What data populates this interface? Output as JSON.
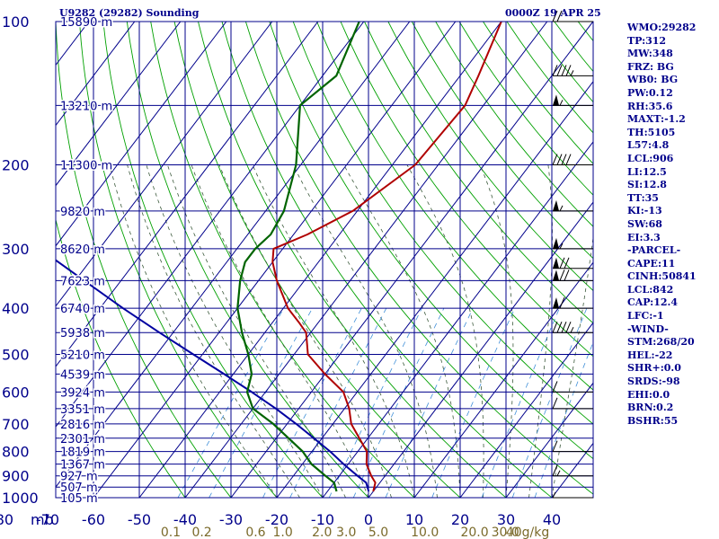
{
  "header": {
    "station": "U9282 (29282) Sounding",
    "time": "0000Z 19 APR 25"
  },
  "side_panel": [
    "WMO:29282",
    "TP:312",
    "MW:348",
    "FRZ: BG",
    "WB0: BG",
    "PW:0.12",
    "RH:35.6",
    "MAXT:-1.2",
    "TH:5105",
    "L57:4.8",
    "LCL:906",
    "LI:12.5",
    "SI:12.8",
    "TT:35",
    "KI:-13",
    "SW:68",
    "EI:3.3",
    "-PARCEL-",
    "CAPE:11",
    "CINH:50841",
    "LCL:842",
    "CAP:12.4",
    "LFC:-1",
    "-WIND-",
    "STM:268/20",
    "HEL:-22",
    "SHR+:0.0",
    "SRDS:-98",
    "EHI:0.0",
    "BRN:0.2",
    "BSHR:55"
  ],
  "colors": {
    "grid": "#00008b",
    "temperature": "#b00000",
    "dewpoint": "#006400",
    "parcel": "#0000a0",
    "dry_adiabat": "#00a000",
    "moist_adiabat": "#3c5a3c",
    "mixing_ratio": "#3f8fd8",
    "mixing_ratio_label": "#7a6a2a"
  },
  "chart_data": {
    "type": "skew-t",
    "x_label": "",
    "y_label": "mb",
    "y_scale": "log",
    "temperature_axis": [
      -80,
      -70,
      -60,
      -50,
      -40,
      -30,
      -20,
      -10,
      0,
      10,
      20,
      30,
      40
    ],
    "temperature_tick_labels": [
      "-80",
      "-70",
      "-60",
      "-50",
      "-40",
      "-30",
      "-20",
      "-10",
      "0",
      "10",
      "20",
      "30",
      "40"
    ],
    "pressure_axis": [
      100,
      200,
      300,
      400,
      500,
      600,
      700,
      800,
      900,
      1000
    ],
    "height_labels": [
      {
        "p": 100,
        "label": "15890 m"
      },
      {
        "p": 150,
        "label": "13210 m"
      },
      {
        "p": 200,
        "label": "11300 m"
      },
      {
        "p": 250,
        "label": "9820 m"
      },
      {
        "p": 300,
        "label": "8620 m"
      },
      {
        "p": 350,
        "label": "7623 m"
      },
      {
        "p": 400,
        "label": "6740 m"
      },
      {
        "p": 450,
        "label": "5938 m"
      },
      {
        "p": 500,
        "label": "5210 m"
      },
      {
        "p": 550,
        "label": "4539 m"
      },
      {
        "p": 600,
        "label": "3924 m"
      },
      {
        "p": 650,
        "label": "3351 m"
      },
      {
        "p": 700,
        "label": "2816 m"
      },
      {
        "p": 750,
        "label": "2301 m"
      },
      {
        "p": 800,
        "label": "1819 m"
      },
      {
        "p": 850,
        "label": "1367 m"
      },
      {
        "p": 900,
        "label": "927 m"
      },
      {
        "p": 950,
        "label": "507 m"
      },
      {
        "p": 1000,
        "label": "105 m"
      }
    ],
    "mixing_ratio_labels": [
      "0.1",
      "0.2",
      "0.6",
      "1.0",
      "2.0",
      "3.0",
      "5.0",
      "10.0",
      "20.0",
      "30.0",
      "40g/kg"
    ],
    "mixing_ratio_values": [
      0.1,
      0.2,
      0.6,
      1.0,
      2.0,
      3.0,
      5.0,
      10.0,
      20.0,
      30.0,
      40.0
    ],
    "series": [
      {
        "id": "temperature",
        "p": [
          100,
          130,
          150,
          200,
          250,
          280,
          300,
          320,
          350,
          400,
          430,
          450,
          500,
          550,
          600,
          650,
          700,
          800,
          850,
          900,
          930,
          970
        ],
        "t": [
          -50,
          -46,
          -44,
          -45,
          -51,
          -57,
          -62,
          -60,
          -56,
          -49,
          -44,
          -41,
          -37,
          -30,
          -23,
          -19,
          -16,
          -8,
          -6,
          -3,
          -1,
          0
        ]
      },
      {
        "id": "dewpoint",
        "p": [
          100,
          130,
          150,
          200,
          250,
          280,
          300,
          320,
          350,
          400,
          450,
          500,
          550,
          600,
          650,
          700,
          800,
          850,
          900,
          930,
          970
        ],
        "t": [
          -81,
          -77,
          -80,
          -71,
          -66,
          -65,
          -66,
          -66,
          -64,
          -60,
          -55,
          -50,
          -46,
          -44,
          -40,
          -33,
          -22,
          -18,
          -13,
          -10,
          -8
        ]
      },
      {
        "id": "parcel",
        "p": [
          300,
          350,
          400,
          450,
          500,
          550,
          600,
          650,
          700,
          800,
          850,
          900,
          930,
          970
        ],
        "t": [
          -113,
          -98,
          -85,
          -73,
          -62,
          -52,
          -43,
          -35,
          -28,
          -16,
          -11,
          -6,
          -3,
          -1
        ]
      }
    ],
    "wind_barbs": [
      {
        "p": 100,
        "dir": 300,
        "kt": 20
      },
      {
        "p": 130,
        "dir": 300,
        "kt": 45
      },
      {
        "p": 150,
        "dir": 300,
        "kt": 55
      },
      {
        "p": 200,
        "dir": 300,
        "kt": 40
      },
      {
        "p": 250,
        "dir": 300,
        "kt": 55
      },
      {
        "p": 300,
        "dir": 300,
        "kt": 55
      },
      {
        "p": 330,
        "dir": 300,
        "kt": 70
      },
      {
        "p": 350,
        "dir": 300,
        "kt": 70
      },
      {
        "p": 400,
        "dir": 300,
        "kt": 60
      },
      {
        "p": 450,
        "dir": 300,
        "kt": 45
      },
      {
        "p": 600,
        "dir": 300,
        "kt": 10
      },
      {
        "p": 650,
        "dir": 300,
        "kt": 10
      },
      {
        "p": 800,
        "dir": 300,
        "kt": 10
      },
      {
        "p": 900,
        "dir": 300,
        "kt": 15
      },
      {
        "p": 1000,
        "dir": 300,
        "kt": 5
      }
    ]
  }
}
